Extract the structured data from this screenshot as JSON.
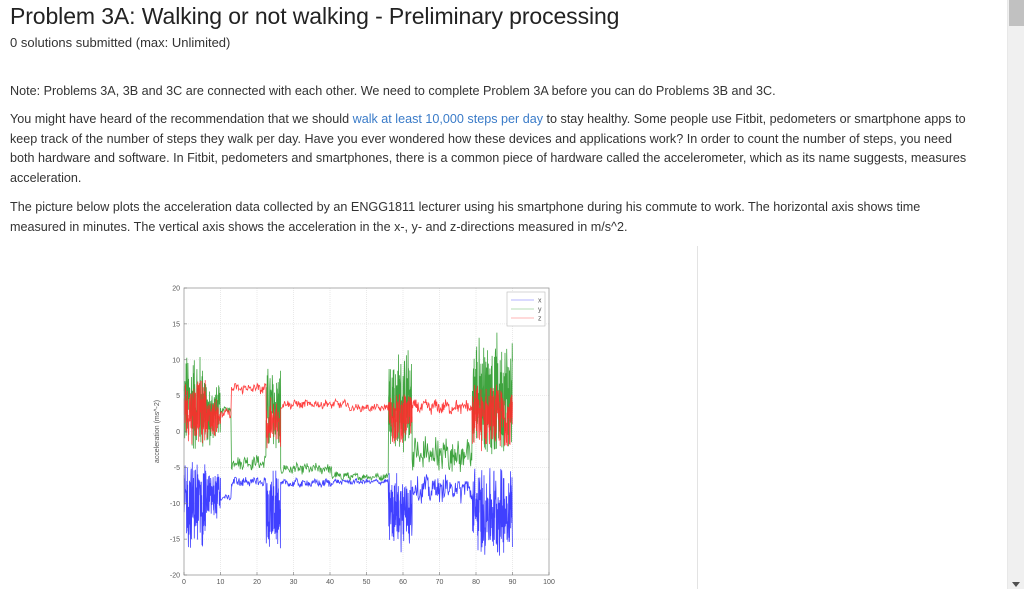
{
  "problem": {
    "title": "Problem 3A: Walking or not walking - Preliminary processing",
    "submissions": "0 solutions submitted (max: Unlimited)"
  },
  "content": {
    "note": "Note: Problems 3A, 3B and 3C are connected with each other. We need to complete Problem 3A before you can do Problems 3B and 3C.",
    "intro_before_link": "You might have heard of the recommendation that we should ",
    "intro_link": "walk at least 10,000 steps per day",
    "intro_after_link": " to stay healthy. Some people use Fitbit, pedometers or smartphone apps to keep track of the number of steps they walk per day. Have you ever wondered how these devices and applications work? In order to count the number of steps, you need both hardware and software. In Fitbit, pedometers and smartphones, there is a common piece of hardware called the accelerometer, which as its name suggests, measures acceleration.",
    "picture_description": "The picture below plots the acceleration data collected by an ENGG1811 lecturer using his smartphone during his commute to work. The horizontal axis shows time measured in minutes. The vertical axis shows the acceleration in the x-, y- and z-directions measured in m/s^2."
  },
  "chart_data": {
    "type": "line",
    "title": "",
    "xlabel": "",
    "ylabel": "acceleration (ms^-2)",
    "xlim": [
      0,
      100
    ],
    "ylim": [
      -20,
      20
    ],
    "x_ticks": [
      0,
      10,
      20,
      30,
      40,
      50,
      60,
      70,
      80,
      90,
      100
    ],
    "y_ticks": [
      20,
      15,
      10,
      5,
      0,
      -5,
      -10,
      -15,
      -20
    ],
    "grid": true,
    "legend": {
      "position": "upper right",
      "entries": [
        "x",
        "y",
        "z"
      ]
    },
    "colors": {
      "x": "#2b2bff",
      "y": "#2a9a2a",
      "z": "#ff2b2b"
    },
    "series": [
      {
        "name": "y",
        "segments": [
          {
            "x0": 0,
            "x1": 6,
            "mean": 4,
            "amp": 8
          },
          {
            "x0": 6,
            "x1": 8,
            "mean": 2,
            "amp": 5
          },
          {
            "x0": 8,
            "x1": 10,
            "mean": 3,
            "amp": 4
          },
          {
            "x0": 10,
            "x1": 13,
            "mean": 3,
            "amp": 0.4
          },
          {
            "x0": 13,
            "x1": 22.5,
            "mean": -4.3,
            "amp": 0.8
          },
          {
            "x0": 22.5,
            "x1": 26.5,
            "mean": 3,
            "amp": 7
          },
          {
            "x0": 26.5,
            "x1": 40.5,
            "mean": -5.2,
            "amp": 0.6
          },
          {
            "x0": 40.5,
            "x1": 45,
            "mean": -6.2,
            "amp": 0.5
          },
          {
            "x0": 45,
            "x1": 56,
            "mean": -6.3,
            "amp": 0.4
          },
          {
            "x0": 56,
            "x1": 62.5,
            "mean": 4,
            "amp": 8
          },
          {
            "x0": 62.5,
            "x1": 79,
            "mean": -3.2,
            "amp": 2
          },
          {
            "x0": 79,
            "x1": 90,
            "mean": 5,
            "amp": 9
          }
        ]
      },
      {
        "name": "z",
        "segments": [
          {
            "x0": 0,
            "x1": 6,
            "mean": 3,
            "amp": 5
          },
          {
            "x0": 6,
            "x1": 10,
            "mean": 2,
            "amp": 3
          },
          {
            "x0": 10,
            "x1": 13,
            "mean": 2.5,
            "amp": 0.5
          },
          {
            "x0": 13,
            "x1": 22.5,
            "mean": 6,
            "amp": 0.6
          },
          {
            "x0": 22.5,
            "x1": 26.5,
            "mean": 1,
            "amp": 4
          },
          {
            "x0": 26.5,
            "x1": 45,
            "mean": 3.8,
            "amp": 0.5
          },
          {
            "x0": 45,
            "x1": 56,
            "mean": 3.3,
            "amp": 0.4
          },
          {
            "x0": 56,
            "x1": 62.5,
            "mean": 2,
            "amp": 4
          },
          {
            "x0": 62.5,
            "x1": 79,
            "mean": 3.4,
            "amp": 0.8
          },
          {
            "x0": 79,
            "x1": 90,
            "mean": 2,
            "amp": 5
          }
        ]
      },
      {
        "name": "x",
        "segments": [
          {
            "x0": 0,
            "x1": 6,
            "mean": -10,
            "amp": 7
          },
          {
            "x0": 6,
            "x1": 10,
            "mean": -9,
            "amp": 4
          },
          {
            "x0": 10,
            "x1": 13,
            "mean": -9.2,
            "amp": 0.3
          },
          {
            "x0": 13,
            "x1": 22.5,
            "mean": -7,
            "amp": 0.6
          },
          {
            "x0": 22.5,
            "x1": 26.5,
            "mean": -11,
            "amp": 6
          },
          {
            "x0": 26.5,
            "x1": 40.5,
            "mean": -7.2,
            "amp": 0.5
          },
          {
            "x0": 40.5,
            "x1": 56,
            "mean": -7,
            "amp": 0.3
          },
          {
            "x0": 56,
            "x1": 62.5,
            "mean": -11,
            "amp": 6
          },
          {
            "x0": 62.5,
            "x1": 79,
            "mean": -8,
            "amp": 1.5
          },
          {
            "x0": 79,
            "x1": 90,
            "mean": -11,
            "amp": 7
          }
        ]
      }
    ]
  }
}
